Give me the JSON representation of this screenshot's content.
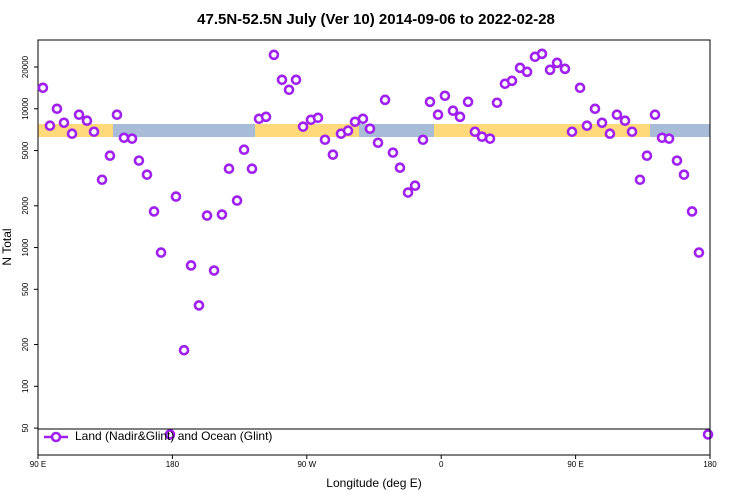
{
  "chart_data": {
    "type": "scatter",
    "title": "47.5N-52.5N July (Ver 10)   2014-09-06 to 2022-02-28",
    "x_label": "Longitude (deg E)",
    "y_label": "N Total",
    "log_y": true,
    "legend": "bottom-left",
    "xlim": [
      90,
      540
    ],
    "ylim": [
      32,
      31300
    ],
    "xticks": [
      {
        "value": 90,
        "label": "90 E"
      },
      180,
      {
        "value": 270,
        "label": "90 W"
      },
      {
        "value": 360,
        "label": "0"
      },
      {
        "value": 450,
        "label": "90 E"
      },
      {
        "value": 540,
        "label": "180"
      }
    ],
    "yticks": [
      50,
      100,
      200,
      500,
      1000,
      2000,
      5000,
      10000,
      20000
    ],
    "series": [
      {
        "name": "Land (Nadir&Glint) and Ocean (Glint)",
        "color": "#a020f0",
        "x": [
          93.3,
          98,
          102.7,
          107.4,
          112.8,
          117.5,
          122.8,
          127.5,
          132.9,
          138.2,
          142.9,
          147.6,
          153,
          157.6,
          163,
          167.7,
          172.4,
          178.4,
          182.4,
          187.8,
          192.5,
          197.8,
          203.2,
          207.9,
          213.2,
          217.9,
          223.3,
          228,
          233.3,
          238,
          242.7,
          248,
          253.4,
          258.1,
          262.8,
          267.5,
          272.8,
          277.5,
          282.2,
          287.5,
          292.9,
          297.6,
          302.3,
          307.6,
          312.3,
          317.7,
          322.4,
          327.7,
          332.4,
          337.8,
          342.5,
          347.8,
          352.5,
          357.9,
          362.5,
          367.9,
          372.6,
          378,
          382.6,
          387.3,
          392.7,
          397.4,
          402.7,
          407.4,
          412.8,
          417.5,
          422.8,
          427.5,
          432.9,
          437.6,
          442.9,
          447.6,
          453,
          457.6,
          463,
          467.7,
          473,
          477.7,
          483.1,
          487.8,
          493.1,
          497.8,
          503.2,
          507.9,
          512.6,
          517.9,
          522.6,
          528,
          532.6,
          538.7
        ],
        "values": [
          14160,
          7550,
          10000,
          7930,
          6610,
          9060,
          8200,
          6830,
          3080,
          4590,
          9060,
          6180,
          6090,
          4230,
          3350,
          1820,
          920,
          45,
          2330,
          182,
          743,
          383,
          1700,
          683,
          1730,
          3700,
          2180,
          5070,
          3700,
          8470,
          8750,
          24470,
          16170,
          13700,
          16170,
          7430,
          8330,
          8610,
          5980,
          4670,
          6610,
          6950,
          8060,
          8470,
          7180,
          5690,
          11600,
          4830,
          3760,
          2490,
          2790,
          5980,
          11220,
          9060,
          12400,
          9680,
          8750,
          11220,
          6830,
          6290,
          6090,
          11050,
          15140,
          15890,
          19720,
          18460,
          23680,
          24870,
          19080,
          21420,
          19400,
          6830,
          14160,
          7550,
          10000,
          7930,
          6610,
          9060,
          8200,
          6830,
          3080,
          4590,
          9060,
          6180,
          6090,
          4230,
          3350,
          1820,
          920,
          45
        ]
      }
    ]
  }
}
